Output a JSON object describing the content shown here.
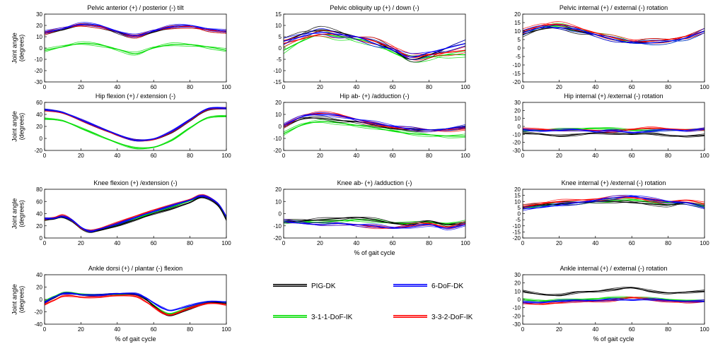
{
  "legend": {
    "entries": [
      {
        "name": "PIG-DK",
        "color": "#000000"
      },
      {
        "name": "6-DoF-DK",
        "color": "#0000ff"
      },
      {
        "name": "3-1-1-DoF-IK",
        "color": "#00dd00"
      },
      {
        "name": "3-3-2-DoF-IK",
        "color": "#ff0000"
      }
    ]
  },
  "chart_data": [
    {
      "id": "pelvic-tilt",
      "type": "line",
      "title": "Pelvic anterior (+) / posterior (-) tilt",
      "ylabel": "Joint angle (degrees)",
      "xlabel": "",
      "xlim": [
        0,
        100
      ],
      "ylim": [
        -30,
        30
      ],
      "xticks": [
        0,
        20,
        40,
        60,
        80,
        100
      ],
      "yticks": [
        30,
        20,
        10,
        0,
        -10,
        -20,
        -30
      ],
      "x": [
        0,
        10,
        20,
        30,
        40,
        50,
        60,
        70,
        80,
        90,
        100
      ],
      "series": [
        {
          "name": "PIG-DK",
          "values": [
            13,
            16,
            20,
            19,
            14,
            10,
            14,
            18,
            19,
            16,
            14
          ]
        },
        {
          "name": "6-DoF-DK",
          "values": [
            14,
            17,
            21,
            20,
            15,
            11,
            15,
            19,
            20,
            17,
            15
          ]
        },
        {
          "name": "3-1-1-DoF-IK",
          "values": [
            -2,
            1,
            4,
            3,
            -1,
            -5,
            0,
            3,
            3,
            1,
            -2
          ]
        },
        {
          "name": "3-3-2-DoF-IK",
          "values": [
            13,
            17,
            20,
            19,
            15,
            10,
            15,
            18,
            19,
            16,
            14
          ]
        }
      ]
    },
    {
      "id": "pelvic-obliquity",
      "type": "line",
      "title": "Pelvic obliquity up (+) / down (-)",
      "ylabel": "",
      "xlabel": "",
      "xlim": [
        0,
        100
      ],
      "ylim": [
        -15,
        15
      ],
      "xticks": [
        0,
        20,
        40,
        60,
        80,
        100
      ],
      "yticks": [
        15,
        10,
        5,
        0,
        -5,
        -10,
        -15
      ],
      "x": [
        0,
        10,
        20,
        30,
        40,
        50,
        60,
        70,
        80,
        90,
        100
      ],
      "series": [
        {
          "name": "PIG-DK",
          "values": [
            3,
            6,
            8,
            7,
            5,
            3,
            -1,
            -5,
            -3,
            0,
            2
          ]
        },
        {
          "name": "6-DoF-DK",
          "values": [
            3,
            5,
            7,
            6,
            5,
            2,
            -1,
            -4,
            -2,
            0,
            2
          ]
        },
        {
          "name": "3-1-1-DoF-IK",
          "values": [
            -1,
            3,
            6,
            5,
            4,
            2,
            -2,
            -5,
            -4,
            -3,
            -3
          ]
        },
        {
          "name": "3-3-2-DoF-IK",
          "values": [
            2,
            4,
            6,
            6,
            5,
            3,
            0,
            -4,
            -3,
            -2,
            -1
          ]
        }
      ]
    },
    {
      "id": "pelvic-rotation",
      "type": "line",
      "title": "Pelvic internal (+) / external (-) rotation",
      "ylabel": "",
      "xlabel": "",
      "xlim": [
        0,
        100
      ],
      "ylim": [
        -20,
        20
      ],
      "xticks": [
        0,
        20,
        40,
        60,
        80,
        100
      ],
      "yticks": [
        20,
        15,
        10,
        5,
        0,
        -5,
        -10,
        -15,
        -20
      ],
      "x": [
        0,
        10,
        20,
        30,
        40,
        50,
        60,
        70,
        80,
        90,
        100
      ],
      "series": [
        {
          "name": "PIG-DK",
          "values": [
            8,
            11,
            12,
            10,
            8,
            5,
            3,
            4,
            5,
            7,
            10
          ]
        },
        {
          "name": "6-DoF-DK",
          "values": [
            9,
            12,
            12,
            11,
            8,
            5,
            3,
            3,
            4,
            6,
            10
          ]
        },
        {
          "name": "3-1-1-DoF-IK",
          "values": [
            9,
            12,
            13,
            11,
            9,
            6,
            3,
            3,
            4,
            6,
            10
          ]
        },
        {
          "name": "3-3-2-DoF-IK",
          "values": [
            10,
            13,
            14,
            12,
            9,
            6,
            4,
            4,
            5,
            7,
            10
          ]
        }
      ]
    },
    {
      "id": "hip-flexion",
      "type": "line",
      "title": "Hip flexion (+) / extension (-)",
      "ylabel": "Joint angle (degrees)",
      "xlabel": "",
      "xlim": [
        0,
        100
      ],
      "ylim": [
        -20,
        60
      ],
      "xticks": [
        0,
        20,
        40,
        60,
        80,
        100
      ],
      "yticks": [
        60,
        40,
        20,
        0,
        -20
      ],
      "x": [
        0,
        10,
        20,
        30,
        40,
        50,
        60,
        70,
        80,
        90,
        100
      ],
      "series": [
        {
          "name": "PIG-DK",
          "values": [
            48,
            42,
            30,
            18,
            6,
            -3,
            -2,
            10,
            30,
            48,
            50
          ]
        },
        {
          "name": "6-DoF-DK",
          "values": [
            48,
            43,
            31,
            19,
            7,
            -3,
            -1,
            12,
            32,
            50,
            50
          ]
        },
        {
          "name": "3-1-1-DoF-IK",
          "values": [
            33,
            29,
            17,
            5,
            -7,
            -16,
            -15,
            -3,
            18,
            35,
            37
          ]
        },
        {
          "name": "3-3-2-DoF-IK",
          "values": [
            47,
            42,
            30,
            18,
            6,
            -3,
            -2,
            11,
            31,
            49,
            50
          ]
        }
      ]
    },
    {
      "id": "hip-adduction",
      "type": "line",
      "title": "Hip ab- (+) /adduction (-)",
      "ylabel": "",
      "xlabel": "",
      "xlim": [
        0,
        100
      ],
      "ylim": [
        -20,
        20
      ],
      "xticks": [
        0,
        20,
        40,
        60,
        80,
        100
      ],
      "yticks": [
        20,
        10,
        0,
        -10,
        -20
      ],
      "x": [
        0,
        10,
        20,
        30,
        40,
        50,
        60,
        70,
        80,
        90,
        100
      ],
      "series": [
        {
          "name": "PIG-DK",
          "values": [
            0,
            6,
            7,
            5,
            4,
            1,
            -2,
            -3,
            -3,
            -2,
            -1
          ]
        },
        {
          "name": "6-DoF-DK",
          "values": [
            1,
            8,
            10,
            9,
            6,
            3,
            0,
            -2,
            -3,
            -2,
            0
          ]
        },
        {
          "name": "3-1-1-DoF-IK",
          "values": [
            -6,
            1,
            4,
            3,
            1,
            -1,
            -4,
            -6,
            -7,
            -8,
            -8
          ]
        },
        {
          "name": "3-3-2-DoF-IK",
          "values": [
            0,
            8,
            11,
            10,
            6,
            2,
            -1,
            -2,
            -3,
            -3,
            -2
          ]
        }
      ]
    },
    {
      "id": "hip-rotation",
      "type": "line",
      "title": "Hip internal (+) /external (-) rotation",
      "ylabel": "",
      "xlabel": "",
      "xlim": [
        0,
        100
      ],
      "ylim": [
        -30,
        30
      ],
      "xticks": [
        0,
        20,
        40,
        60,
        80,
        100
      ],
      "yticks": [
        30,
        20,
        10,
        0,
        -10,
        -20,
        -30
      ],
      "x": [
        0,
        10,
        20,
        30,
        40,
        50,
        60,
        70,
        80,
        90,
        100
      ],
      "series": [
        {
          "name": "PIG-DK",
          "values": [
            -8,
            -10,
            -12,
            -10,
            -8,
            -9,
            -10,
            -9,
            -11,
            -12,
            -11
          ]
        },
        {
          "name": "6-DoF-DK",
          "values": [
            -4,
            -6,
            -5,
            -4,
            -6,
            -5,
            -8,
            -6,
            -4,
            -5,
            -3
          ]
        },
        {
          "name": "3-1-1-DoF-IK",
          "values": [
            -5,
            -5,
            -4,
            -3,
            -2,
            -3,
            -5,
            -5,
            -4,
            -4,
            -4
          ]
        },
        {
          "name": "3-3-2-DoF-IK",
          "values": [
            -3,
            -4,
            -5,
            -4,
            -5,
            -6,
            -4,
            -2,
            -3,
            -4,
            -4
          ]
        }
      ]
    },
    {
      "id": "knee-flexion",
      "type": "line",
      "title": "Knee flexion (+) /extension (-)",
      "ylabel": "Joint angle (degrees)",
      "xlabel": "",
      "xlim": [
        0,
        100
      ],
      "ylim": [
        0,
        80
      ],
      "xticks": [
        0,
        20,
        40,
        60,
        80,
        100
      ],
      "yticks": [
        80,
        60,
        40,
        20,
        0
      ],
      "x": [
        0,
        5,
        10,
        15,
        20,
        25,
        30,
        40,
        50,
        60,
        70,
        80,
        87,
        95,
        100
      ],
      "series": [
        {
          "name": "PIG-DK",
          "values": [
            30,
            31,
            34,
            28,
            16,
            10,
            12,
            20,
            30,
            40,
            48,
            58,
            67,
            55,
            30
          ]
        },
        {
          "name": "6-DoF-DK",
          "values": [
            32,
            32,
            35,
            30,
            18,
            11,
            14,
            23,
            34,
            44,
            53,
            62,
            69,
            58,
            35
          ]
        },
        {
          "name": "3-1-1-DoF-IK",
          "values": [
            30,
            32,
            34,
            30,
            17,
            11,
            13,
            22,
            32,
            42,
            51,
            61,
            68,
            57,
            33
          ]
        },
        {
          "name": "3-3-2-DoF-IK",
          "values": [
            31,
            33,
            37,
            30,
            17,
            12,
            15,
            25,
            36,
            46,
            54,
            63,
            70,
            58,
            35
          ]
        }
      ]
    },
    {
      "id": "knee-adduction",
      "type": "line",
      "title": "Knee ab- (+) /adduction (-)",
      "ylabel": "",
      "xlabel": "% of gait cycle",
      "xlim": [
        0,
        100
      ],
      "ylim": [
        -20,
        20
      ],
      "xticks": [
        0,
        20,
        40,
        60,
        80,
        100
      ],
      "yticks": [
        20,
        10,
        0,
        -10,
        -20
      ],
      "x": [
        0,
        10,
        20,
        30,
        40,
        50,
        60,
        70,
        80,
        90,
        100
      ],
      "series": [
        {
          "name": "PIG-DK",
          "values": [
            -6,
            -6,
            -5,
            -4,
            -3,
            -5,
            -8,
            -9,
            -6,
            -9,
            -8
          ]
        },
        {
          "name": "6-DoF-DK",
          "values": [
            -6,
            -8,
            -9,
            -8,
            -9,
            -10,
            -12,
            -11,
            -9,
            -12,
            -9
          ]
        },
        {
          "name": "3-1-1-DoF-IK",
          "values": [
            -7,
            -7,
            -7,
            -6,
            -5,
            -6,
            -8,
            -8,
            -7,
            -8,
            -7
          ]
        },
        {
          "name": "3-3-2-DoF-IK",
          "values": [
            -6,
            -8,
            -9,
            -8,
            -9,
            -11,
            -12,
            -10,
            -8,
            -11,
            -8
          ]
        }
      ]
    },
    {
      "id": "knee-rotation",
      "type": "line",
      "title": "Knee internal (+) /external (-) rotation",
      "ylabel": "",
      "xlabel": "",
      "xlim": [
        0,
        100
      ],
      "ylim": [
        -20,
        20
      ],
      "xticks": [
        0,
        20,
        40,
        60,
        80,
        100
      ],
      "yticks": [
        20,
        15,
        10,
        5,
        0,
        -5,
        -10,
        -15,
        -20
      ],
      "x": [
        0,
        10,
        20,
        30,
        40,
        50,
        60,
        70,
        80,
        90,
        100
      ],
      "series": [
        {
          "name": "PIG-DK",
          "values": [
            6,
            7,
            8,
            9,
            10,
            10,
            9,
            8,
            7,
            9,
            5
          ]
        },
        {
          "name": "6-DoF-DK",
          "values": [
            4,
            5,
            7,
            9,
            11,
            13,
            14,
            12,
            10,
            9,
            5
          ]
        },
        {
          "name": "3-1-1-DoF-IK",
          "values": [
            5,
            6,
            8,
            9,
            10,
            11,
            11,
            10,
            9,
            9,
            6
          ]
        },
        {
          "name": "3-3-2-DoF-IK",
          "values": [
            6,
            8,
            10,
            11,
            12,
            13,
            13,
            11,
            10,
            11,
            8
          ]
        }
      ]
    },
    {
      "id": "ankle-flexion",
      "type": "line",
      "title": "Ankle dorsi (+) / plantar (-) flexion",
      "ylabel": "Joint angle (degrees)",
      "xlabel": "% of gait cycle",
      "xlim": [
        0,
        100
      ],
      "ylim": [
        -40,
        40
      ],
      "xticks": [
        0,
        20,
        40,
        60,
        80,
        100
      ],
      "yticks": [
        40,
        20,
        0,
        -20,
        -40
      ],
      "x": [
        0,
        5,
        10,
        15,
        20,
        30,
        40,
        50,
        55,
        60,
        65,
        70,
        80,
        90,
        100
      ],
      "series": [
        {
          "name": "PIG-DK",
          "values": [
            -5,
            2,
            9,
            10,
            8,
            7,
            9,
            8,
            2,
            -10,
            -22,
            -26,
            -15,
            -5,
            -6
          ]
        },
        {
          "name": "6-DoF-DK",
          "values": [
            -5,
            3,
            9,
            10,
            8,
            7,
            9,
            9,
            4,
            -5,
            -14,
            -18,
            -10,
            -3,
            -4
          ]
        },
        {
          "name": "3-1-1-DoF-IK",
          "values": [
            -3,
            4,
            10,
            11,
            9,
            7,
            8,
            8,
            2,
            -9,
            -20,
            -23,
            -13,
            -4,
            -5
          ]
        },
        {
          "name": "3-3-2-DoF-IK",
          "values": [
            -8,
            -2,
            5,
            6,
            4,
            4,
            6,
            5,
            -2,
            -12,
            -22,
            -25,
            -14,
            -6,
            -8
          ]
        }
      ]
    },
    {
      "id": "ankle-rotation",
      "type": "line",
      "title": "Ankle internal (+) / external (-) rotation",
      "ylabel": "",
      "xlabel": "% of gait cycle",
      "xlim": [
        0,
        100
      ],
      "ylim": [
        -30,
        30
      ],
      "xticks": [
        0,
        20,
        40,
        60,
        80,
        100
      ],
      "yticks": [
        30,
        20,
        10,
        0,
        -10,
        -20,
        -30
      ],
      "x": [
        0,
        10,
        20,
        30,
        40,
        50,
        60,
        70,
        80,
        90,
        100
      ],
      "series": [
        {
          "name": "PIG-DK",
          "values": [
            10,
            6,
            5,
            9,
            10,
            12,
            14,
            10,
            8,
            9,
            10
          ]
        },
        {
          "name": "6-DoF-DK",
          "values": [
            -3,
            -4,
            -2,
            -1,
            -1,
            0,
            -1,
            0,
            -1,
            -2,
            -2
          ]
        },
        {
          "name": "3-1-1-DoF-IK",
          "values": [
            0,
            -2,
            -1,
            0,
            1,
            2,
            2,
            1,
            0,
            -1,
            -2
          ]
        },
        {
          "name": "3-3-2-DoF-IK",
          "values": [
            -4,
            -6,
            -4,
            -2,
            -2,
            -1,
            2,
            0,
            -2,
            -3,
            -2
          ]
        }
      ]
    }
  ]
}
